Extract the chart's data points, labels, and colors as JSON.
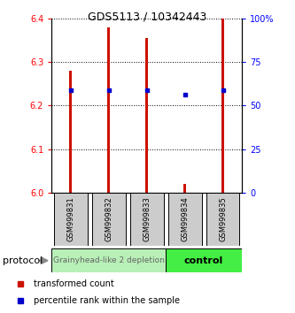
{
  "title": "GDS5113 / 10342443",
  "samples": [
    "GSM999831",
    "GSM999832",
    "GSM999833",
    "GSM999834",
    "GSM999835"
  ],
  "red_values": [
    6.28,
    6.38,
    6.355,
    6.02,
    6.4
  ],
  "blue_values_left": [
    6.235,
    6.236,
    6.235,
    6.225,
    6.235
  ],
  "ylim_left": [
    6.0,
    6.4
  ],
  "ylim_right": [
    0,
    100
  ],
  "yticks_left": [
    6.0,
    6.1,
    6.2,
    6.3,
    6.4
  ],
  "yticks_right": [
    0,
    25,
    50,
    75,
    100
  ],
  "ytick_labels_right": [
    "0",
    "25",
    "50",
    "75",
    "100%"
  ],
  "group1_label": "Grainyhead-like 2 depletion",
  "group1_color": "#b8f0b8",
  "group2_label": "control",
  "group2_color": "#44ee44",
  "bar_width": 0.07,
  "bar_color": "#cc1100",
  "blue_marker_color": "#0000cc",
  "background_color": "#ffffff",
  "protocol_label": "protocol",
  "legend_red": "transformed count",
  "legend_blue": "percentile rank within the sample",
  "title_fontsize": 9,
  "tick_fontsize": 7,
  "label_fontsize": 6,
  "proto_fontsize": 6.5,
  "legend_fontsize": 7
}
